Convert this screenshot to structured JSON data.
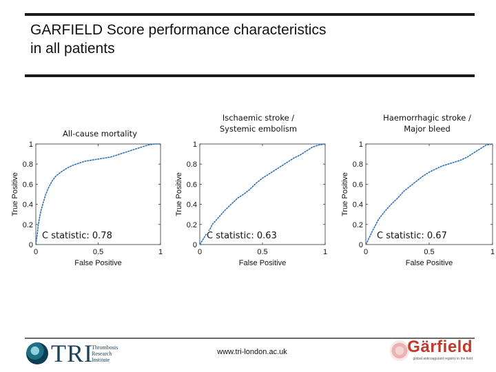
{
  "slide": {
    "title_lines": [
      "GARFIELD Score performance characteristics",
      "in all patients"
    ],
    "footer_url": "www.tri-london.ac.uk",
    "tri_logo": {
      "letters": "TRI",
      "sub_lines": [
        "Thrombosis",
        "Research",
        "Institute"
      ]
    },
    "garfield_logo": {
      "word": "Gärfield",
      "tagline": "global anticoagulant registry in the field"
    },
    "colors": {
      "curve": "#2f72b8",
      "rule": "#1a1a1a",
      "text": "#111111",
      "garfield": "#c0392b"
    }
  },
  "chart_data": [
    {
      "type": "line",
      "title_lines": [
        "All-cause mortality"
      ],
      "xlabel": "False Positive",
      "ylabel": "True Positive",
      "xlim": [
        0,
        1
      ],
      "ylim": [
        0,
        1
      ],
      "x_ticks": [
        "0",
        "0.5",
        "1"
      ],
      "y_ticks": [
        "0",
        "0.2",
        "0.4",
        "0.6",
        "0.8",
        "1"
      ],
      "annotation": "C statistic: 0.78",
      "series": [
        {
          "x": [
            0,
            0.01,
            0.02,
            0.04,
            0.06,
            0.08,
            0.1,
            0.13,
            0.16,
            0.2,
            0.25,
            0.3,
            0.35,
            0.4,
            0.45,
            0.5,
            0.55,
            0.6,
            0.65,
            0.7,
            0.75,
            0.8,
            0.85,
            0.9,
            0.95,
            1
          ],
          "y": [
            0,
            0.09,
            0.2,
            0.33,
            0.42,
            0.5,
            0.56,
            0.63,
            0.68,
            0.72,
            0.76,
            0.79,
            0.81,
            0.83,
            0.84,
            0.85,
            0.86,
            0.87,
            0.89,
            0.91,
            0.93,
            0.95,
            0.97,
            0.99,
            1,
            1
          ]
        }
      ]
    },
    {
      "type": "line",
      "title_lines": [
        "Ischaemic stroke /",
        "Systemic embolism"
      ],
      "xlabel": "False Positive",
      "ylabel": "True Positive",
      "xlim": [
        0,
        1
      ],
      "ylim": [
        0,
        1
      ],
      "x_ticks": [
        "0",
        "0.5",
        "1"
      ],
      "y_ticks": [
        "0",
        "0.2",
        "0.4",
        "0.6",
        "0.8",
        "1"
      ],
      "annotation": "C statistic: 0.63",
      "series": [
        {
          "x": [
            0,
            0.02,
            0.05,
            0.08,
            0.1,
            0.15,
            0.2,
            0.25,
            0.3,
            0.35,
            0.4,
            0.45,
            0.5,
            0.55,
            0.6,
            0.65,
            0.7,
            0.75,
            0.8,
            0.85,
            0.9,
            0.95,
            1
          ],
          "y": [
            0,
            0.04,
            0.1,
            0.15,
            0.2,
            0.27,
            0.34,
            0.4,
            0.46,
            0.5,
            0.55,
            0.61,
            0.66,
            0.7,
            0.74,
            0.78,
            0.82,
            0.86,
            0.89,
            0.93,
            0.97,
            0.99,
            1
          ]
        }
      ]
    },
    {
      "type": "line",
      "title_lines": [
        "Haemorrhagic stroke /",
        "Major bleed"
      ],
      "xlabel": "False Positive",
      "ylabel": "True Positive",
      "xlim": [
        0,
        1
      ],
      "ylim": [
        0,
        1
      ],
      "x_ticks": [
        "0",
        "0.5",
        "1"
      ],
      "y_ticks": [
        "0",
        "0.2",
        "0.4",
        "0.6",
        "0.8",
        "1"
      ],
      "annotation": "C statistic: 0.67",
      "series": [
        {
          "x": [
            0,
            0.02,
            0.05,
            0.08,
            0.1,
            0.15,
            0.2,
            0.25,
            0.3,
            0.35,
            0.4,
            0.45,
            0.5,
            0.55,
            0.6,
            0.65,
            0.7,
            0.75,
            0.8,
            0.85,
            0.9,
            0.95,
            1
          ],
          "y": [
            0,
            0.05,
            0.13,
            0.2,
            0.25,
            0.33,
            0.4,
            0.46,
            0.53,
            0.58,
            0.63,
            0.68,
            0.72,
            0.75,
            0.78,
            0.8,
            0.82,
            0.84,
            0.87,
            0.91,
            0.95,
            0.99,
            1
          ]
        }
      ]
    }
  ]
}
